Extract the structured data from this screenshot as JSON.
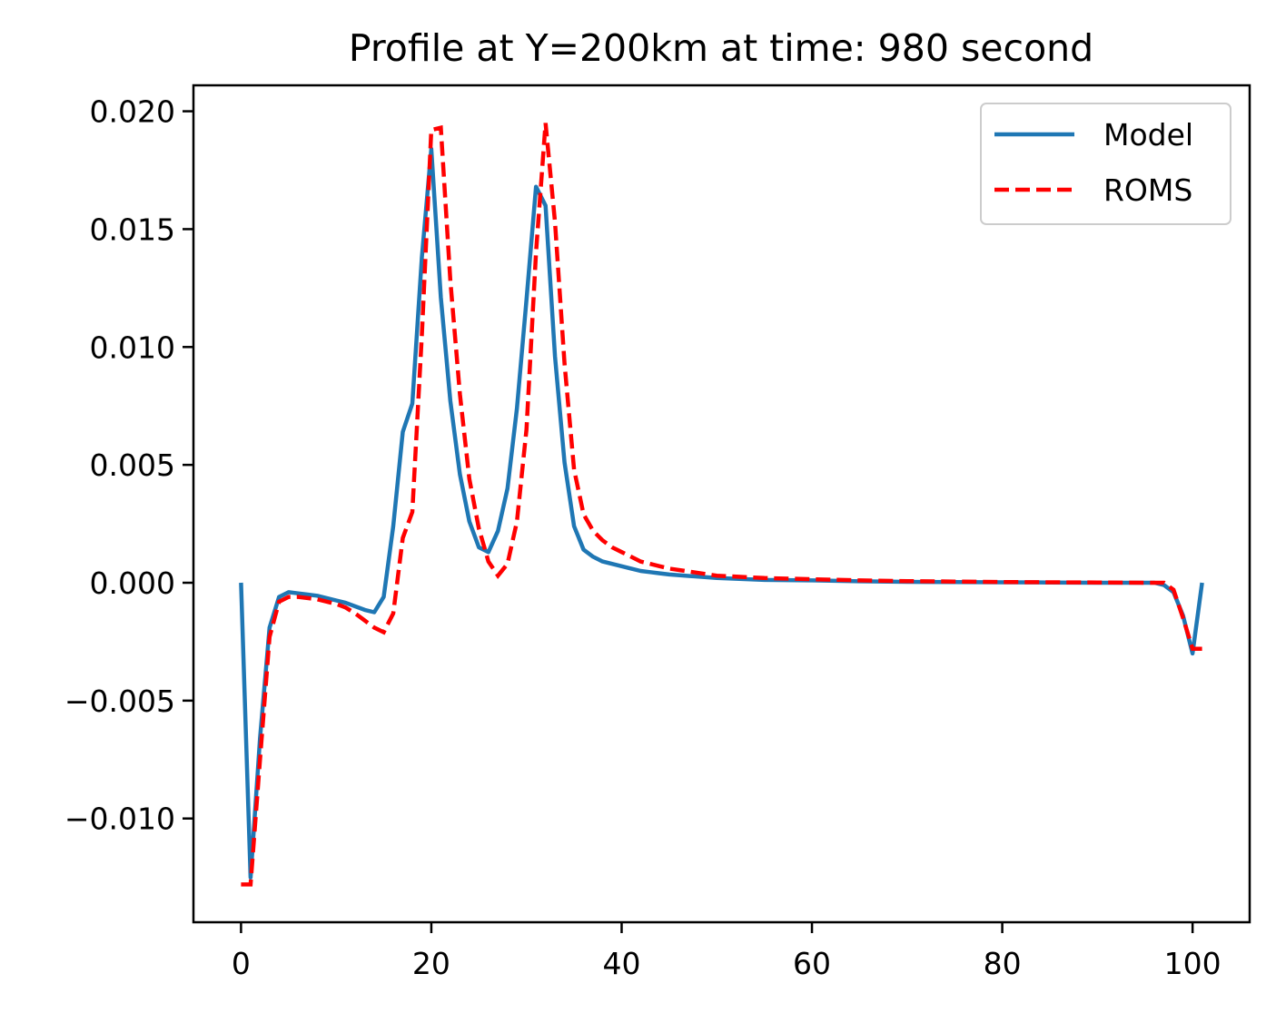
{
  "chart_data": {
    "type": "line",
    "title": "Profile at Y=200km at time: 980 second",
    "xlabel": "",
    "ylabel": "",
    "xlim": [
      -5,
      106
    ],
    "ylim": [
      -0.0144,
      0.0211
    ],
    "x_ticks": [
      0,
      20,
      40,
      60,
      80,
      100
    ],
    "x_tick_labels": [
      "0",
      "20",
      "40",
      "60",
      "80",
      "100"
    ],
    "y_ticks": [
      -0.01,
      -0.005,
      0.0,
      0.005,
      0.01,
      0.015,
      0.02
    ],
    "y_tick_labels": [
      "−0.010",
      "−0.005",
      "0.000",
      "0.005",
      "0.010",
      "0.015",
      "0.020"
    ],
    "grid": false,
    "legend_position": "top-right",
    "series": [
      {
        "name": "Model",
        "color": "#1f77b4",
        "style": "solid",
        "x": [
          0,
          1,
          2,
          3,
          4,
          5,
          6,
          7,
          8,
          9,
          10,
          11,
          12,
          13,
          14,
          15,
          16,
          17,
          18,
          19,
          20,
          21,
          22,
          23,
          24,
          25,
          26,
          27,
          28,
          29,
          30,
          31,
          32,
          33,
          34,
          35,
          36,
          37,
          38,
          39,
          40,
          41,
          42,
          43,
          44,
          45,
          50,
          55,
          60,
          65,
          70,
          75,
          80,
          85,
          90,
          95,
          96,
          97,
          98,
          99,
          100,
          101
        ],
        "values": [
          0.0,
          -0.0125,
          -0.0066,
          -0.0019,
          -0.0006,
          -0.0004,
          -0.00045,
          -0.0005,
          -0.00055,
          -0.00065,
          -0.00075,
          -0.00085,
          -0.001,
          -0.00115,
          -0.00125,
          -0.0006,
          0.0024,
          0.0064,
          0.0076,
          0.0138,
          0.0184,
          0.0121,
          0.0077,
          0.0046,
          0.0026,
          0.0015,
          0.0013,
          0.0022,
          0.004,
          0.0074,
          0.012,
          0.0168,
          0.016,
          0.0096,
          0.0051,
          0.0024,
          0.0014,
          0.0011,
          0.0009,
          0.0008,
          0.0007,
          0.0006,
          0.0005,
          0.00045,
          0.0004,
          0.00035,
          0.0002,
          0.00012,
          0.0001,
          6e-05,
          4e-05,
          3e-05,
          2e-05,
          1e-05,
          0.0,
          0.0,
          0.0,
          -0.0001,
          -0.0004,
          -0.0014,
          -0.003,
          0.0
        ]
      },
      {
        "name": "ROMS",
        "color": "#ff0000",
        "style": "dashed",
        "x": [
          0,
          1,
          2,
          3,
          4,
          5,
          6,
          7,
          8,
          9,
          10,
          11,
          12,
          13,
          14,
          15,
          16,
          17,
          18,
          19,
          20,
          21,
          22,
          23,
          24,
          25,
          26,
          27,
          28,
          29,
          30,
          31,
          32,
          33,
          34,
          35,
          36,
          37,
          38,
          39,
          40,
          41,
          42,
          43,
          44,
          45,
          50,
          55,
          60,
          65,
          70,
          75,
          80,
          85,
          90,
          95,
          96,
          97,
          98,
          99,
          100,
          101
        ],
        "values": [
          -0.0128,
          -0.0128,
          -0.0075,
          -0.0023,
          -0.0008,
          -0.0006,
          -0.0006,
          -0.00065,
          -0.0007,
          -0.0008,
          -0.0009,
          -0.00105,
          -0.0013,
          -0.0016,
          -0.0019,
          -0.0021,
          -0.0013,
          0.0019,
          0.003,
          0.0105,
          0.0192,
          0.0193,
          0.0128,
          0.008,
          0.0044,
          0.0023,
          0.0009,
          0.0003,
          0.0008,
          0.0026,
          0.0065,
          0.014,
          0.0195,
          0.0153,
          0.0093,
          0.0048,
          0.0029,
          0.0022,
          0.0018,
          0.0015,
          0.0013,
          0.0011,
          0.0009,
          0.0008,
          0.0007,
          0.0006,
          0.0003,
          0.0002,
          0.00015,
          0.0001,
          7e-05,
          5e-05,
          3e-05,
          2e-05,
          1e-05,
          0.0,
          0.0,
          0.0,
          -0.0003,
          -0.0015,
          -0.0028,
          -0.0028
        ]
      }
    ]
  }
}
